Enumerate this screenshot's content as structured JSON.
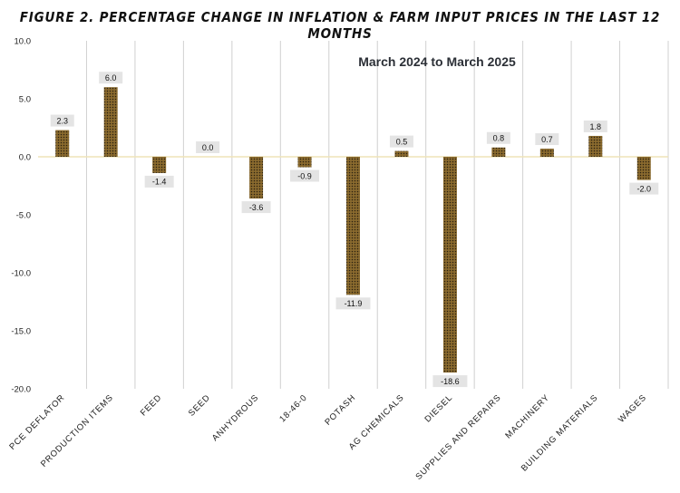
{
  "title": "FIGURE 2.  PERCENTAGE CHANGE IN INFLATION & FARM INPUT PRICES IN THE LAST 12 MONTHS",
  "chart_data": {
    "type": "bar",
    "subtitle": "March 2024 to March 2025",
    "categories": [
      "PCE DEFLATOR",
      "PRODUCTION ITEMS",
      "FEED",
      "SEED",
      "ANHYDROUS",
      "18-46-0",
      "POTASH",
      "AG CHEMICALS",
      "DIESEL",
      "SUPPLIES AND REPAIRS",
      "MACHINERY",
      "BUILDING MATERIALS",
      "WAGES"
    ],
    "values": [
      2.3,
      6.0,
      -1.4,
      0.0,
      -3.6,
      -0.9,
      -11.9,
      0.5,
      -18.6,
      0.8,
      0.7,
      1.8,
      -2.0
    ],
    "data_labels": [
      "2.3",
      "6.0",
      "-1.4",
      "0.0",
      "-3.6",
      "-0.9",
      "-11.9",
      "0.5",
      "-18.6",
      "0.8",
      "0.7",
      "1.8",
      "-2.0"
    ],
    "yticks": [
      "10.0",
      "5.0",
      "0.0",
      "-5.0",
      "-10.0",
      "-15.0",
      "-20.0"
    ],
    "ytick_values": [
      10,
      5,
      0,
      -5,
      -10,
      -15,
      -20
    ],
    "ylim": [
      -20,
      10
    ],
    "xlabel": "",
    "ylabel": "",
    "grid": "vertical category separators",
    "legend": "none",
    "colors": {
      "bar": "#8a6a2e",
      "bar_dots": "#2a2010",
      "zero_line": "#efe3b8",
      "grid": "#d0d0d0",
      "label_bg": "#e4e4e4"
    }
  }
}
